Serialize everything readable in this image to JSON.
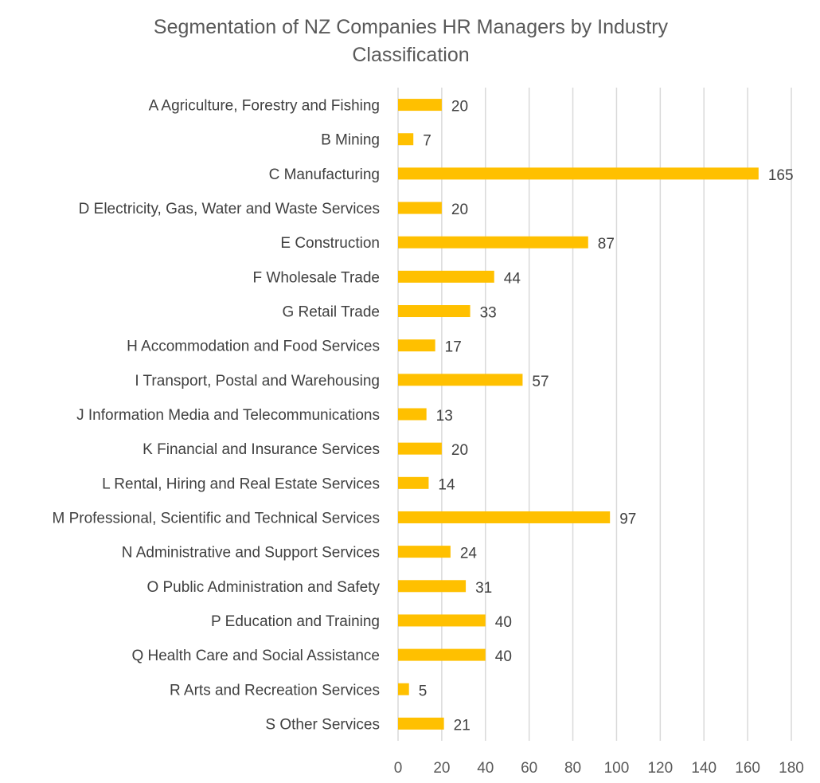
{
  "chart_data": {
    "type": "bar",
    "orientation": "horizontal",
    "title": "Segmentation of NZ Companies HR Managers by Industry Classification",
    "title_lines": [
      "Segmentation of NZ Companies HR Managers by Industry",
      "Classification"
    ],
    "xlabel": "",
    "ylabel": "",
    "xlim": [
      0,
      180
    ],
    "xticks": [
      0,
      20,
      40,
      60,
      80,
      100,
      120,
      140,
      160,
      180
    ],
    "grid": "vertical",
    "legend": "none",
    "data_labels": true,
    "categories": [
      "A Agriculture, Forestry and Fishing",
      "B Mining",
      "C Manufacturing",
      "D Electricity, Gas, Water and Waste Services",
      "E Construction",
      "F Wholesale Trade",
      "G Retail Trade",
      "H Accommodation and Food Services",
      "I Transport, Postal and Warehousing",
      "J Information Media and Telecommunications",
      "K Financial and Insurance Services",
      "L Rental, Hiring and Real Estate Services",
      "M Professional, Scientific and Technical Services",
      "N Administrative and Support Services",
      "O Public Administration and Safety",
      "P Education and Training",
      "Q Health Care and Social Assistance",
      "R Arts and Recreation Services",
      "S Other Services"
    ],
    "values": [
      20,
      7,
      165,
      20,
      87,
      44,
      33,
      17,
      57,
      13,
      20,
      14,
      97,
      24,
      31,
      40,
      40,
      5,
      21
    ],
    "colors": {
      "bar": "#FFC000",
      "grid": "#D9D9D9",
      "title": "#595959",
      "text": "#404040"
    }
  }
}
